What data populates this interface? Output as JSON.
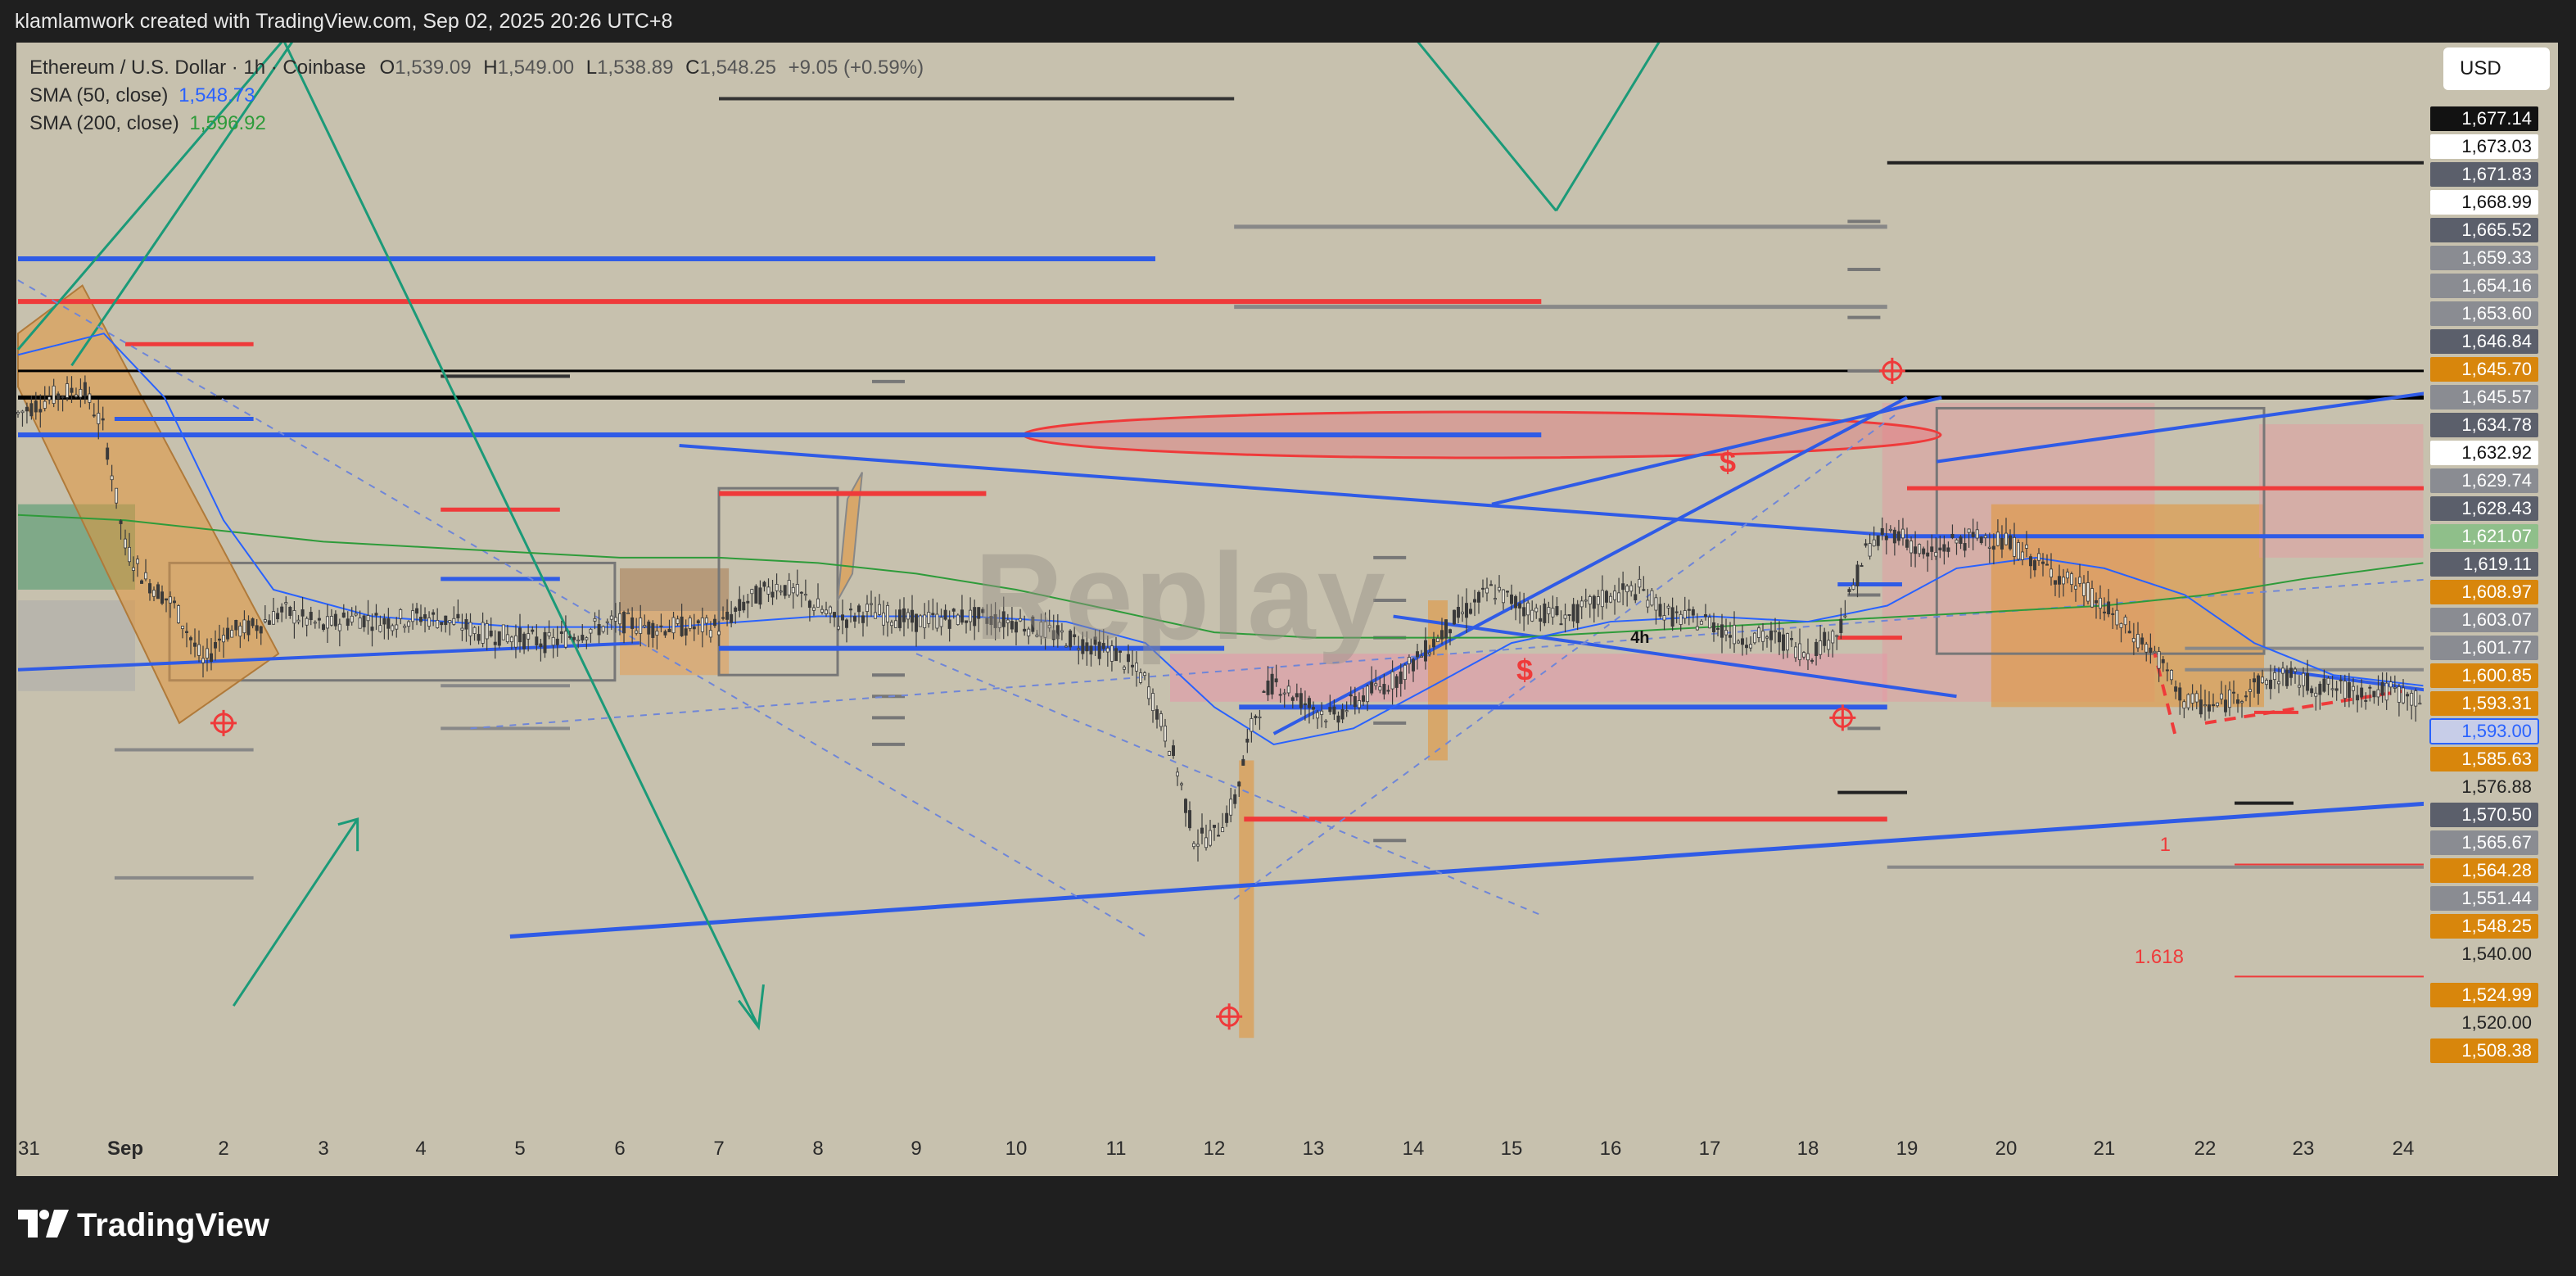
{
  "header": {
    "caption": "klamlamwork created with TradingView.com, Sep 02, 2025 20:26 UTC+8"
  },
  "legend": {
    "symbol": "Ethereum / U.S. Dollar · 1h · Coinbase",
    "open_label": "O",
    "open": "1,539.09",
    "high_label": "H",
    "high": "1,549.00",
    "low_label": "L",
    "low": "1,538.89",
    "close_label": "C",
    "close": "1,548.25",
    "change": "+9.05 (+0.59%)",
    "sma50_label": "SMA (50, close)",
    "sma50_value": "1,548.73",
    "sma200_label": "SMA (200, close)",
    "sma200_value": "1,596.92"
  },
  "currency_button": "USD",
  "watermark": "Replay",
  "footer": {
    "brand": "TradingView"
  },
  "colors": {
    "background": "#c7c1ae",
    "candle": "#3a3a3a",
    "sma50": "#2962ff",
    "sma200": "#2e9b3a",
    "blue_line": "#2f5be6",
    "red_line": "#ef3a3a",
    "green_line": "#1b9a78",
    "orange_zone": "#e0a35a",
    "label_dark": "#5b5f6b",
    "label_orange": "#d8860c"
  },
  "chart_data": {
    "type": "candlestick",
    "title": "Ethereum / U.S. Dollar · 1h · Coinbase",
    "ylim": [
      1495,
      1685
    ],
    "x_ticks": [
      "31",
      "Sep",
      "2",
      "3",
      "4",
      "5",
      "6",
      "7",
      "8",
      "9",
      "10",
      "11",
      "12",
      "13",
      "14",
      "15",
      "16",
      "17",
      "18",
      "19",
      "20",
      "21",
      "22",
      "23",
      "24"
    ],
    "price_path": [
      [
        0,
        1625
      ],
      [
        0.3,
        1628
      ],
      [
        0.6,
        1630
      ],
      [
        0.8,
        1622
      ],
      [
        1.0,
        1600
      ],
      [
        1.2,
        1594
      ],
      [
        1.5,
        1589
      ],
      [
        1.8,
        1578
      ],
      [
        2.0,
        1584
      ],
      [
        2.3,
        1585
      ],
      [
        2.6,
        1588
      ],
      [
        3.0,
        1585
      ],
      [
        3.3,
        1587
      ],
      [
        3.6,
        1586
      ],
      [
        4.0,
        1587
      ],
      [
        4.3,
        1586
      ],
      [
        4.6,
        1584
      ],
      [
        5.0,
        1583
      ],
      [
        5.3,
        1582
      ],
      [
        5.6,
        1584
      ],
      [
        6.0,
        1586
      ],
      [
        6.3,
        1585
      ],
      [
        6.6,
        1585
      ],
      [
        7.0,
        1585
      ],
      [
        7.3,
        1590
      ],
      [
        7.6,
        1593
      ],
      [
        7.9,
        1590
      ],
      [
        8.2,
        1586
      ],
      [
        8.5,
        1588
      ],
      [
        9.0,
        1586
      ],
      [
        9.5,
        1587
      ],
      [
        10.0,
        1586
      ],
      [
        10.5,
        1583
      ],
      [
        11.0,
        1580
      ],
      [
        11.3,
        1575
      ],
      [
        11.6,
        1560
      ],
      [
        11.8,
        1545
      ],
      [
        12.0,
        1546
      ],
      [
        12.2,
        1552
      ],
      [
        12.4,
        1568
      ],
      [
        12.6,
        1575
      ],
      [
        12.9,
        1571
      ],
      [
        13.2,
        1568
      ],
      [
        13.5,
        1572
      ],
      [
        13.8,
        1575
      ],
      [
        14.1,
        1580
      ],
      [
        14.4,
        1586
      ],
      [
        14.8,
        1592
      ],
      [
        15.2,
        1588
      ],
      [
        15.6,
        1587
      ],
      [
        16.0,
        1591
      ],
      [
        16.3,
        1592
      ],
      [
        16.6,
        1587
      ],
      [
        17.0,
        1586
      ],
      [
        17.3,
        1583
      ],
      [
        17.7,
        1583
      ],
      [
        18.0,
        1580
      ],
      [
        18.3,
        1584
      ],
      [
        18.6,
        1600
      ],
      [
        18.9,
        1603
      ],
      [
        19.2,
        1598
      ],
      [
        19.5,
        1601
      ],
      [
        19.8,
        1602
      ],
      [
        20.1,
        1600
      ],
      [
        20.4,
        1596
      ],
      [
        20.8,
        1592
      ],
      [
        21.2,
        1585
      ],
      [
        21.5,
        1580
      ],
      [
        21.8,
        1571
      ],
      [
        22.1,
        1570
      ],
      [
        22.4,
        1573
      ],
      [
        22.8,
        1576
      ],
      [
        23.1,
        1574
      ],
      [
        23.5,
        1573
      ],
      [
        23.9,
        1573
      ],
      [
        24.2,
        1571
      ]
    ],
    "sma50": {
      "name": "SMA (50, close)",
      "last": 1548.73
    },
    "sma200": {
      "name": "SMA (200, close)",
      "last": 1596.92
    },
    "fib_levels": [
      {
        "label": "1"
      },
      {
        "label": "1.618"
      }
    ],
    "annotations": [
      "4h",
      "$",
      "$"
    ],
    "price_labels": [
      {
        "text": "1,677.14",
        "value": 1677.14,
        "style": "black"
      },
      {
        "text": "1,673.03",
        "value": 1673.03,
        "style": "white"
      },
      {
        "text": "1,671.83",
        "value": 1671.83,
        "style": "dark"
      },
      {
        "text": "1,668.99",
        "value": 1668.99,
        "style": "white"
      },
      {
        "text": "1,665.52",
        "value": 1665.52,
        "style": "dark"
      },
      {
        "text": "1,659.33",
        "value": 1659.33,
        "style": "grey"
      },
      {
        "text": "1,654.16",
        "value": 1654.16,
        "style": "grey"
      },
      {
        "text": "1,653.60",
        "value": 1653.6,
        "style": "grey"
      },
      {
        "text": "1,646.84",
        "value": 1646.84,
        "style": "dark"
      },
      {
        "text": "1,645.70",
        "value": 1645.7,
        "style": "orange"
      },
      {
        "text": "1,645.57",
        "value": 1645.57,
        "style": "grey"
      },
      {
        "text": "1,634.78",
        "value": 1634.78,
        "style": "dark"
      },
      {
        "text": "1,632.92",
        "value": 1632.92,
        "style": "white"
      },
      {
        "text": "1,629.74",
        "value": 1629.74,
        "style": "grey"
      },
      {
        "text": "1,628.43",
        "value": 1628.43,
        "style": "dark"
      },
      {
        "text": "1,621.07",
        "value": 1621.07,
        "style": "green"
      },
      {
        "text": "1,619.11",
        "value": 1619.11,
        "style": "dark"
      },
      {
        "text": "1,608.97",
        "value": 1608.97,
        "style": "orange"
      },
      {
        "text": "1,603.07",
        "value": 1603.07,
        "style": "grey"
      },
      {
        "text": "1,601.77",
        "value": 1601.77,
        "style": "grey"
      },
      {
        "text": "1,600.85",
        "value": 1600.85,
        "style": "orange"
      },
      {
        "text": "1,593.31",
        "value": 1593.31,
        "style": "orange"
      },
      {
        "text": "1,593.00",
        "value": 1593.0,
        "style": "bluebox"
      },
      {
        "text": "1,585.63",
        "value": 1585.63,
        "style": "orange"
      },
      {
        "text": "1,576.88",
        "value": 1576.88,
        "style": "plain"
      },
      {
        "text": "1,570.50",
        "value": 1570.5,
        "style": "dark"
      },
      {
        "text": "1,565.67",
        "value": 1565.67,
        "style": "grey"
      },
      {
        "text": "1,564.28",
        "value": 1564.28,
        "style": "orange"
      },
      {
        "text": "1,551.44",
        "value": 1551.44,
        "style": "grey"
      },
      {
        "text": "1,548.25",
        "value": 1548.25,
        "style": "orange"
      },
      {
        "text": "1,540.00",
        "value": 1540.0,
        "style": "plain"
      },
      {
        "text": "1,524.99",
        "value": 1524.99,
        "style": "orange"
      },
      {
        "text": "1,520.00",
        "value": 1520.0,
        "style": "plain"
      },
      {
        "text": "1,508.38",
        "value": 1508.38,
        "style": "orange"
      }
    ]
  }
}
